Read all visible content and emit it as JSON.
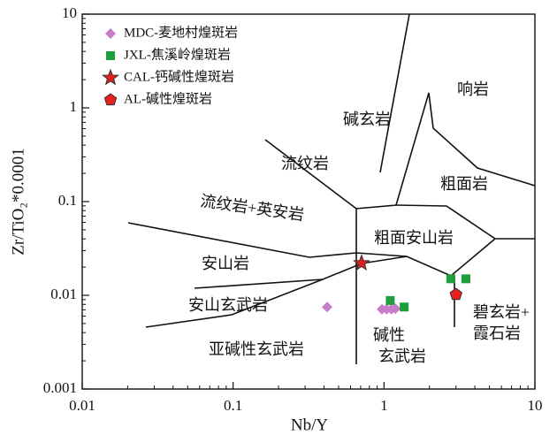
{
  "chart_data": {
    "type": "scatter",
    "x_label": "Nb/Y",
    "y_label": "Zr/TiO₂*0.0001",
    "xscale": "log",
    "yscale": "log",
    "xlim": [
      0.01,
      10
    ],
    "ylim": [
      0.001,
      10
    ],
    "xticks": [
      0.01,
      0.1,
      1,
      10
    ],
    "yticks": [
      0.001,
      0.01,
      0.1,
      1,
      10
    ],
    "legend": "upper left",
    "series": [
      {
        "name": "MDC-麦地村煌斑岩",
        "color": "#c77dc7",
        "marker": "diamond",
        "x": [
          0.42,
          0.97,
          1.04,
          1.12,
          1.19
        ],
        "values": [
          0.0075,
          0.0071,
          0.0071,
          0.0071,
          0.0072
        ]
      },
      {
        "name": "JXL-焦溪岭煌斑岩",
        "color": "#1e9e3c",
        "marker": "square",
        "x": [
          1.1,
          1.36,
          2.77,
          3.49
        ],
        "values": [
          0.0088,
          0.0075,
          0.015,
          0.015
        ]
      },
      {
        "name": "CAL-钙碱性煌斑岩",
        "color": "#e02020",
        "marker": "star",
        "x": [
          0.71
        ],
        "values": [
          0.022
        ]
      },
      {
        "name": "AL-碱性煌斑岩",
        "color": "#e8201e",
        "marker": "pentagon",
        "x": [
          3.0
        ],
        "values": [
          0.0102
        ]
      }
    ],
    "fields": [
      "响岩",
      "碱玄岩",
      "流纹岩",
      "粗面岩",
      "流纹岩+英安岩",
      "粗面安山岩",
      "安山岩",
      "安山玄武岩",
      "亚碱性玄武岩",
      "碱性",
      "玄武岩",
      "碧玄岩+",
      "霞石岩"
    ]
  }
}
